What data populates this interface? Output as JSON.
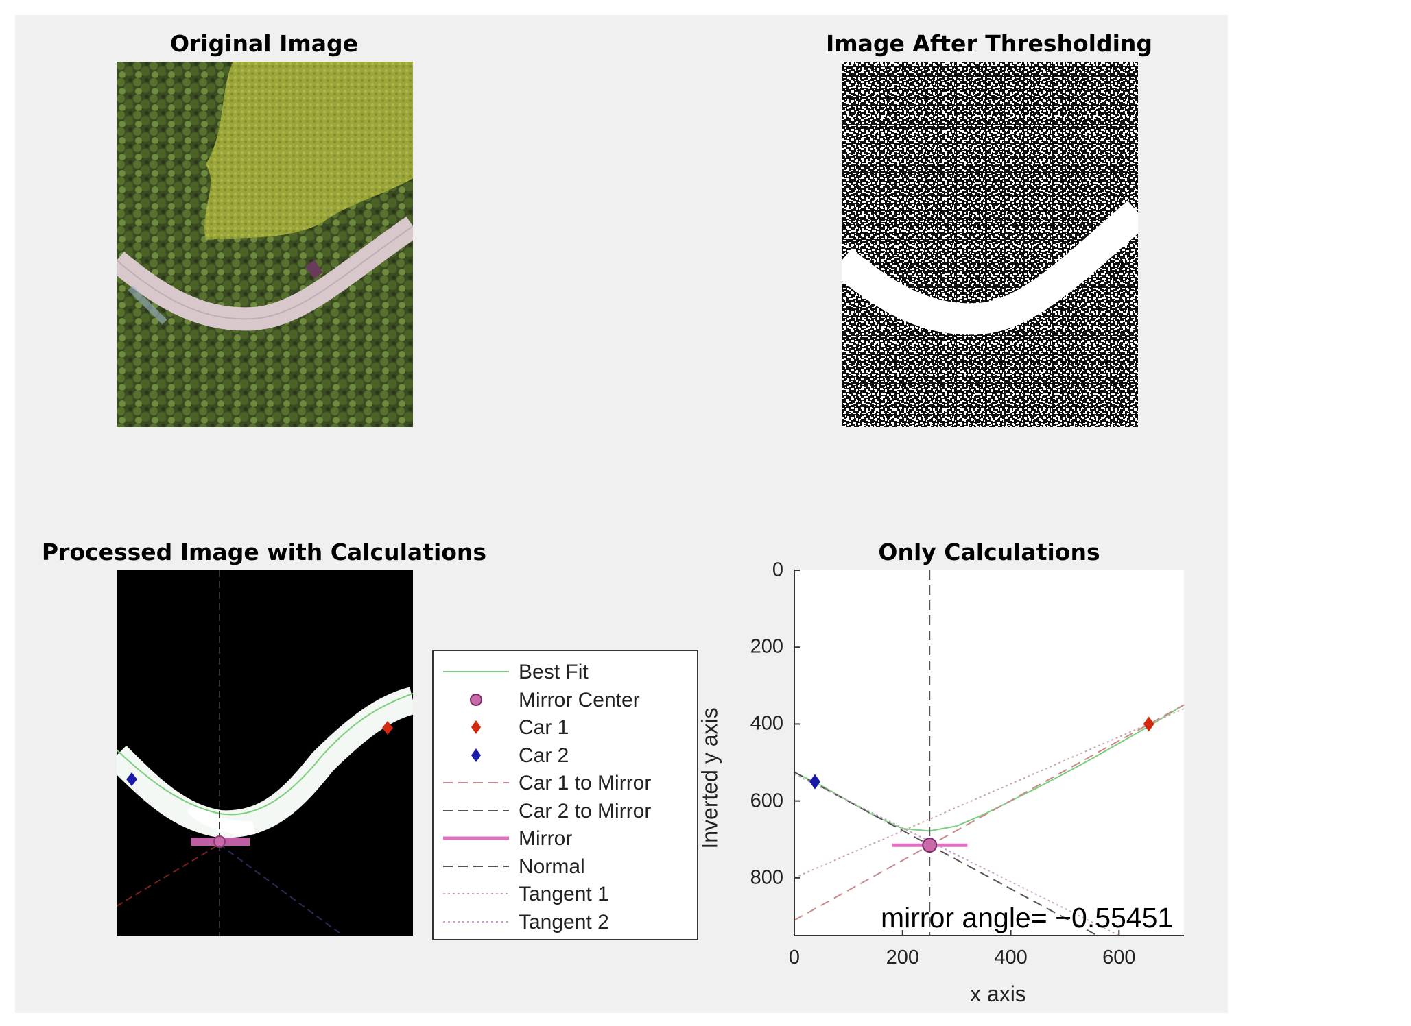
{
  "panels": {
    "original_title": "Original Image",
    "threshold_title": "Image After Thresholding",
    "processed_title": "Processed Image with Calculations",
    "calc_title": "Only Calculations"
  },
  "legend": [
    {
      "label": "Best Fit",
      "style": "line",
      "color": "#7ccf7c",
      "dash": "none"
    },
    {
      "label": "Mirror Center",
      "style": "circle",
      "color": "#c86ba8"
    },
    {
      "label": "Car 1",
      "style": "diamond",
      "color": "#d22a10"
    },
    {
      "label": "Car 2",
      "style": "diamond",
      "color": "#1a1aa8"
    },
    {
      "label": "Car 1 to Mirror",
      "style": "line",
      "color": "#c88a8a",
      "dash": "14 8"
    },
    {
      "label": "Car 2 to Mirror",
      "style": "line",
      "color": "#555555",
      "dash": "14 8"
    },
    {
      "label": "Mirror",
      "style": "line",
      "color": "#e070c0",
      "dash": "none",
      "width": 5
    },
    {
      "label": "Normal",
      "style": "line",
      "color": "#555555",
      "dash": "14 8"
    },
    {
      "label": "Tangent 1",
      "style": "line",
      "color": "#c8a8a8",
      "dash": "3 4"
    },
    {
      "label": "Tangent 2",
      "style": "line",
      "color": "#c8a0c8",
      "dash": "3 4"
    }
  ],
  "annotation": "mirror angle= −0.55451",
  "chart_data": {
    "type": "line",
    "title": "Only Calculations",
    "xlabel": "x axis",
    "ylabel": "Inverted y axis",
    "xlim": [
      0,
      720
    ],
    "ylim": [
      0,
      950
    ],
    "y_reversed": true,
    "x_ticks": [
      0,
      200,
      400,
      600
    ],
    "y_ticks": [
      0,
      200,
      400,
      600,
      800
    ],
    "grid": false,
    "series": [
      {
        "name": "Best Fit",
        "kind": "line",
        "color": "#7ccf7c",
        "x": [
          0,
          50,
          100,
          150,
          200,
          250,
          300,
          350,
          400,
          450,
          500,
          550,
          600,
          650,
          720
        ],
        "y": [
          525,
          560,
          600,
          640,
          672,
          678,
          665,
          635,
          600,
          565,
          528,
          490,
          450,
          410,
          350
        ]
      },
      {
        "name": "Mirror Center",
        "kind": "point",
        "color": "#c86ba8",
        "x": [
          250
        ],
        "y": [
          715
        ]
      },
      {
        "name": "Car 1",
        "kind": "point",
        "color": "#d22a10",
        "x": [
          655
        ],
        "y": [
          400
        ]
      },
      {
        "name": "Car 2",
        "kind": "point",
        "color": "#1a1aa8",
        "x": [
          38
        ],
        "y": [
          550
        ]
      },
      {
        "name": "Car 1 to Mirror",
        "kind": "line",
        "color": "#c88a8a",
        "dash": "14 8",
        "x": [
          0,
          720
        ],
        "y": [
          910,
          350
        ]
      },
      {
        "name": "Car 2 to Mirror",
        "kind": "line",
        "color": "#555555",
        "dash": "14 8",
        "x": [
          0,
          560
        ],
        "y": [
          525,
          950
        ]
      },
      {
        "name": "Mirror",
        "kind": "line",
        "color": "#e070c0",
        "width": 5,
        "x": [
          180,
          320
        ],
        "y": [
          715,
          715
        ]
      },
      {
        "name": "Normal",
        "kind": "line",
        "color": "#555555",
        "dash": "14 8",
        "x": [
          250,
          250
        ],
        "y": [
          0,
          950
        ]
      },
      {
        "name": "Tangent 1",
        "kind": "line",
        "color": "#c8a8a8",
        "dash": "3 4",
        "x": [
          0,
          720
        ],
        "y": [
          800,
          360
        ]
      },
      {
        "name": "Tangent 2",
        "kind": "line",
        "color": "#c8a0c8",
        "dash": "3 4",
        "x": [
          0,
          600
        ],
        "y": [
          530,
          950
        ]
      }
    ]
  }
}
